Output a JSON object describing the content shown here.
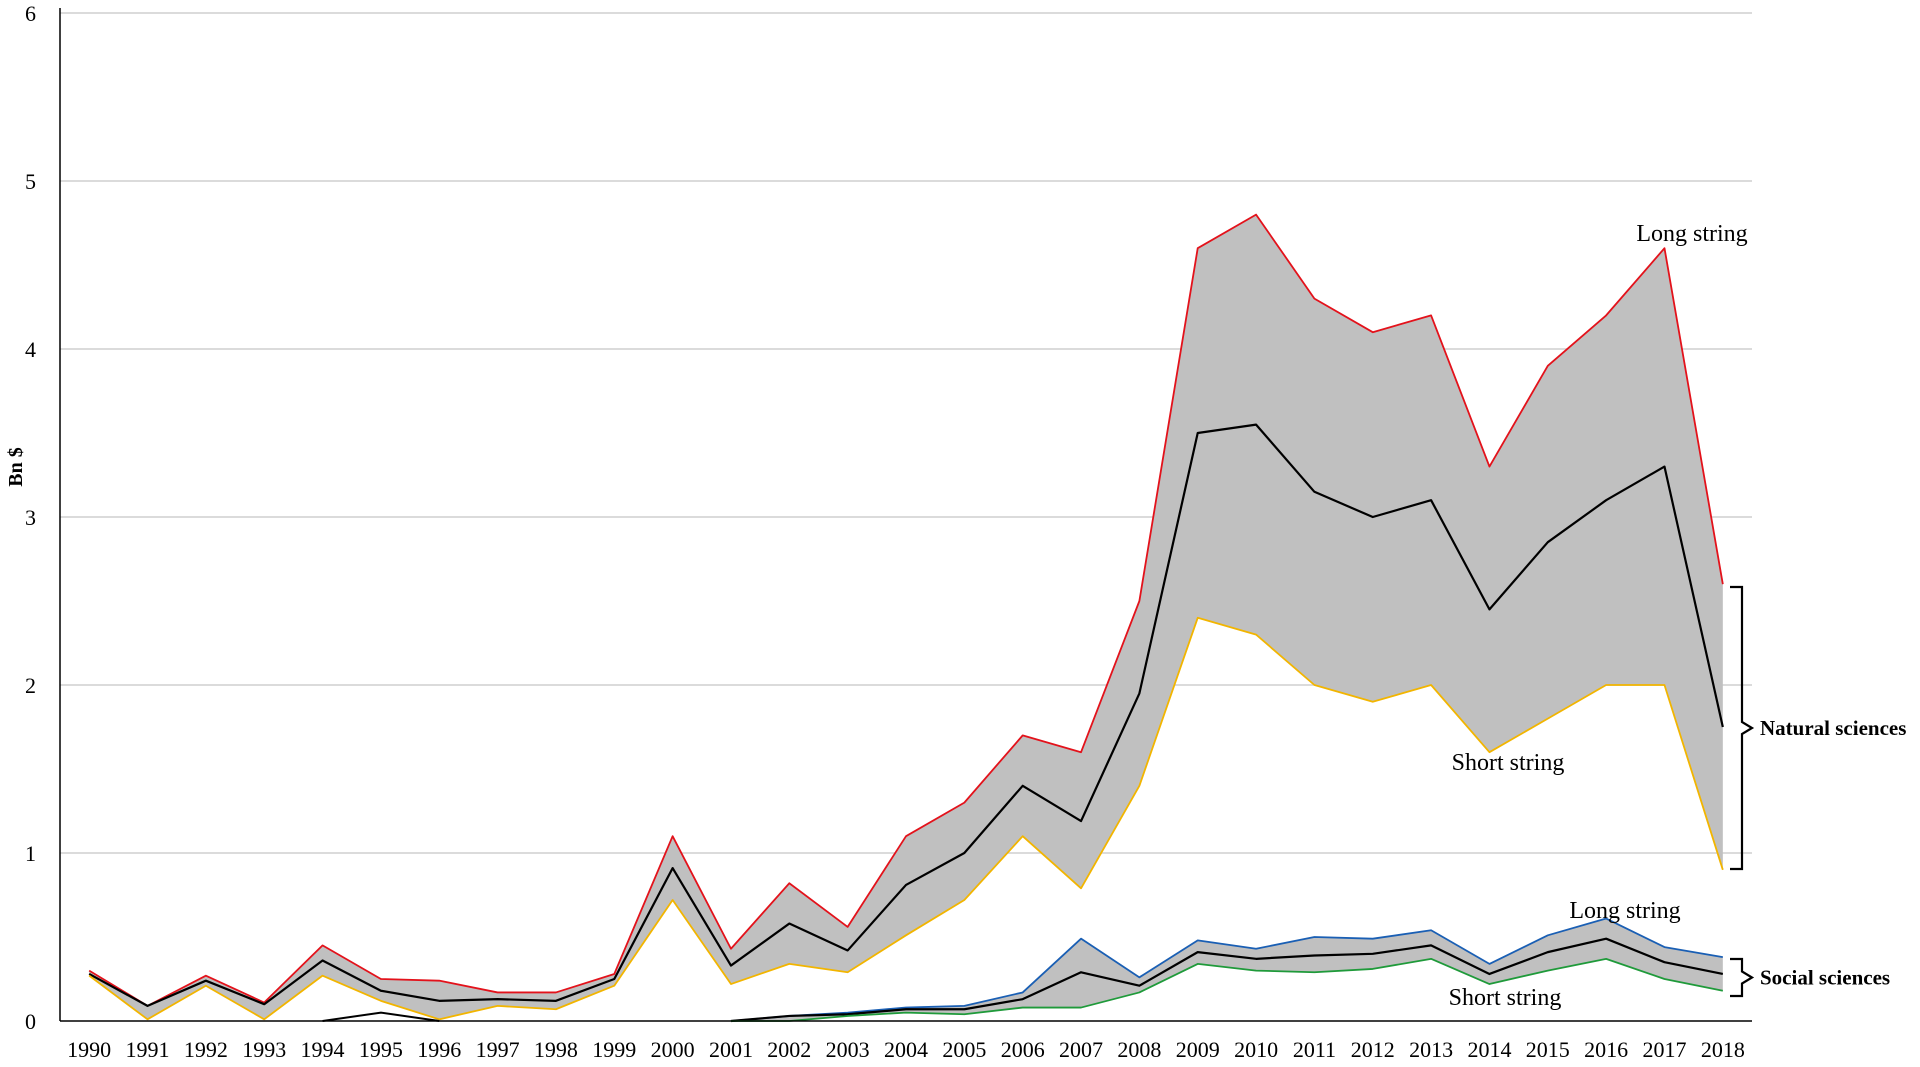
{
  "chart_data": {
    "type": "area",
    "title": "",
    "xlabel": "",
    "ylabel": "Bn $",
    "ylim": [
      0,
      6
    ],
    "y_ticks": [
      0,
      1,
      2,
      3,
      4,
      5,
      6
    ],
    "grid": true,
    "categories": [
      "1990",
      "1991",
      "1992",
      "1993",
      "1994",
      "1995",
      "1996",
      "1997",
      "1998",
      "1999",
      "2000",
      "2001",
      "2002",
      "2003",
      "2004",
      "2005",
      "2006",
      "2007",
      "2008",
      "2009",
      "2010",
      "2011",
      "2012",
      "2013",
      "2014",
      "2015",
      "2016",
      "2017",
      "2018"
    ],
    "groups": [
      {
        "name": "Natural sciences",
        "fill_color": "#c0c0c0",
        "series": [
          {
            "role": "long",
            "color": "#e3121b",
            "label": "Long string",
            "values": [
              0.3,
              0.09,
              0.27,
              0.11,
              0.45,
              0.25,
              0.24,
              0.17,
              0.17,
              0.28,
              1.1,
              0.43,
              0.82,
              0.56,
              1.1,
              1.3,
              1.7,
              1.6,
              2.5,
              4.6,
              4.8,
              4.3,
              4.1,
              4.2,
              3.3,
              3.9,
              4.2,
              4.6,
              2.6
            ]
          },
          {
            "role": "mid",
            "color": "#000000",
            "values": [
              0.28,
              0.09,
              0.24,
              0.1,
              0.36,
              0.18,
              0.12,
              0.13,
              0.12,
              0.25,
              0.91,
              0.33,
              0.58,
              0.42,
              0.81,
              1.0,
              1.4,
              1.19,
              1.95,
              3.5,
              3.55,
              3.15,
              3.0,
              3.1,
              2.45,
              2.85,
              3.1,
              3.3,
              1.75
            ]
          },
          {
            "role": "short",
            "color": "#f2b500",
            "label": "Short string",
            "values": [
              0.27,
              0.01,
              0.21,
              0.01,
              0.27,
              0.12,
              0.01,
              0.09,
              0.07,
              0.21,
              0.72,
              0.22,
              0.34,
              0.29,
              0.51,
              0.72,
              1.1,
              0.79,
              1.4,
              2.4,
              2.3,
              2.0,
              1.9,
              2.0,
              1.6,
              1.8,
              2.0,
              2.0,
              0.9
            ]
          }
        ]
      },
      {
        "name": "Social sciences",
        "fill_color": "#c0c0c0",
        "start_index": 11,
        "series": [
          {
            "role": "long",
            "color": "#1a5fb4",
            "label": "Long string",
            "values": [
              0.0,
              0.03,
              0.05,
              0.08,
              0.09,
              0.17,
              0.49,
              0.26,
              0.48,
              0.43,
              0.5,
              0.49,
              0.54,
              0.34,
              0.51,
              0.61,
              0.44,
              0.38
            ]
          },
          {
            "role": "mid",
            "color": "#000000",
            "values": [
              0.0,
              0.03,
              0.04,
              0.07,
              0.07,
              0.13,
              0.29,
              0.21,
              0.41,
              0.37,
              0.39,
              0.4,
              0.45,
              0.28,
              0.41,
              0.49,
              0.35,
              0.28
            ]
          },
          {
            "role": "short",
            "color": "#1f9a3a",
            "label": "Short string",
            "values": [
              0.0,
              0.0,
              0.03,
              0.05,
              0.04,
              0.08,
              0.08,
              0.17,
              0.34,
              0.3,
              0.29,
              0.31,
              0.37,
              0.22,
              0.3,
              0.37,
              0.25,
              0.18
            ]
          }
        ]
      }
    ],
    "extra_black_segment": {
      "start_index": 4,
      "values": [
        0.0,
        0.05,
        0.0
      ]
    }
  }
}
